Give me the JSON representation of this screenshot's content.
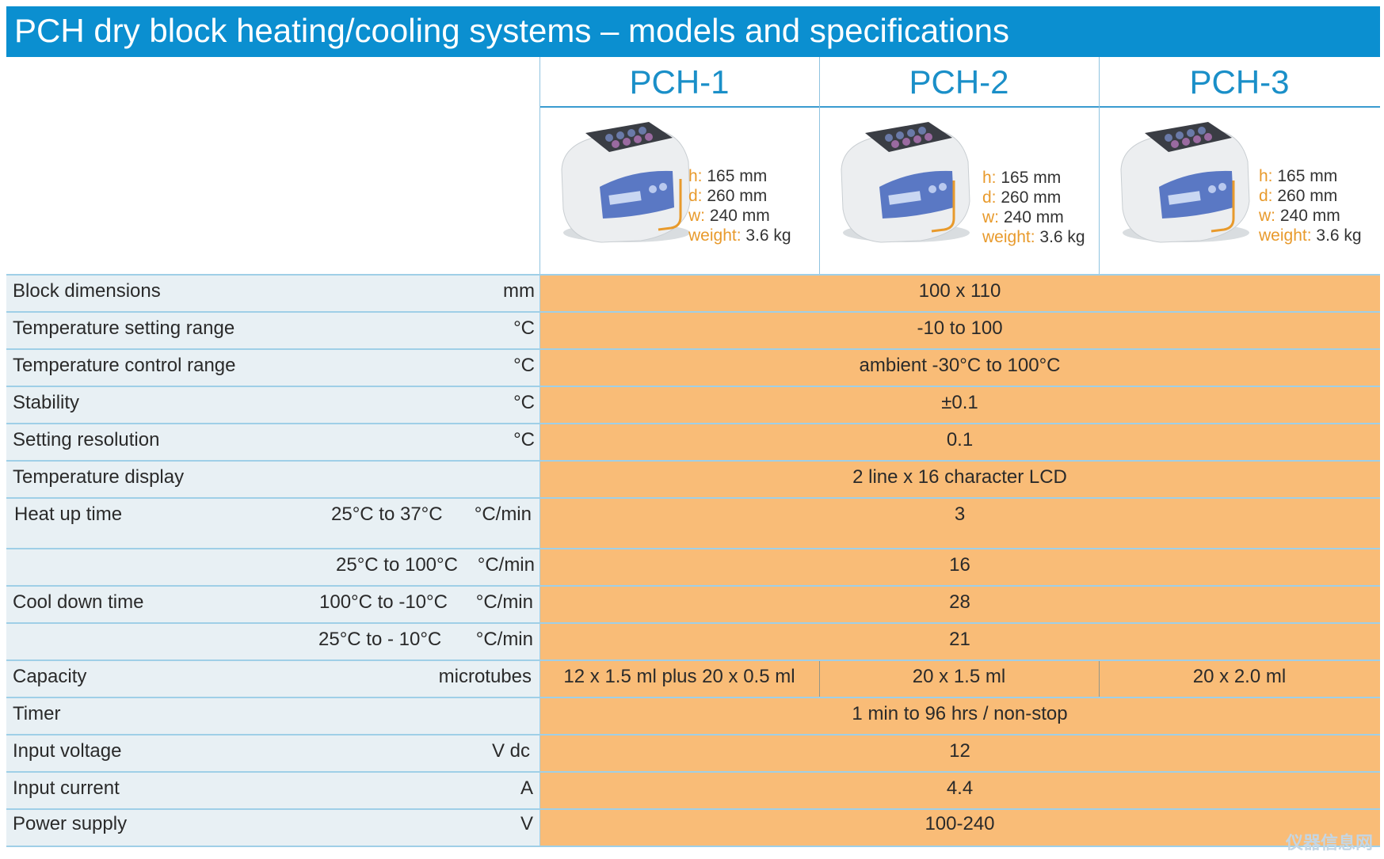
{
  "title": "PCH dry block heating/cooling systems – models and specifications",
  "models": [
    {
      "name": "PCH-1",
      "h": "165 mm",
      "d": "260 mm",
      "w": "240 mm",
      "weight": "3.6 kg"
    },
    {
      "name": "PCH-2",
      "h": "165 mm",
      "d": "260 mm",
      "w": "240 mm",
      "weight": "3.6 kg"
    },
    {
      "name": "PCH-3",
      "h": "165 mm",
      "d": "260 mm",
      "w": "240 mm",
      "weight": "3.6 kg"
    }
  ],
  "dim_keys": {
    "h": "h:",
    "d": "d:",
    "w": "w:",
    "weight": "weight:"
  },
  "rows": [
    {
      "label": "Block dimensions",
      "unit": "mm",
      "value": "100 x 110"
    },
    {
      "label": "Temperature setting range",
      "unit": "°C",
      "value": "-10 to 100"
    },
    {
      "label": "Temperature control range",
      "unit": "°C",
      "value": "ambient -30°C to 100°C"
    },
    {
      "label": "Stability",
      "unit": "°C",
      "value": "±0.1"
    },
    {
      "label": "Setting resolution",
      "unit": "°C",
      "value": "0.1"
    },
    {
      "label": "Temperature display",
      "unit": "",
      "value": "2 line x 16 character LCD"
    },
    {
      "label": "Heat up time",
      "range": "25°C to 37°C",
      "unit": "°C/min",
      "value": "3"
    },
    {
      "label": "",
      "range": "25°C to 100°C",
      "unit": "°C/min",
      "value": "16"
    },
    {
      "label": "Cool down time",
      "range": "100°C to -10°C",
      "unit": "°C/min",
      "value": "28"
    },
    {
      "label": "",
      "range": "25°C to - 10°C",
      "unit": "°C/min",
      "value": "21"
    },
    {
      "label": "Capacity",
      "unit": "microtubes",
      "values": [
        "12 x 1.5 ml plus 20 x 0.5 ml",
        "20 x 1.5 ml",
        "20 x 2.0 ml"
      ]
    },
    {
      "label": "Timer",
      "unit": "",
      "value": "1 min to 96 hrs / non-stop"
    },
    {
      "label": "Input voltage",
      "unit": "V dc",
      "value": "12"
    },
    {
      "label": "Input current",
      "unit": "A",
      "value": "4.4"
    },
    {
      "label": "Power supply",
      "unit": "V",
      "value": "100-240"
    }
  ],
  "watermark": "仪器信息网",
  "colors": {
    "title_bg": "#0b8fd0",
    "model_text": "#1a8fc8",
    "value_bg": "#f9bc77",
    "label_bg": "#e8f0f4",
    "dim_key": "#e89a2c"
  }
}
